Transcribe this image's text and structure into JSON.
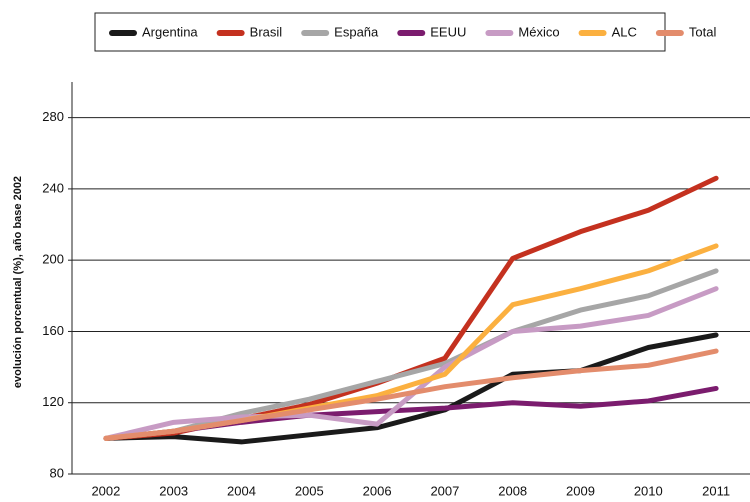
{
  "chart_data": {
    "type": "line",
    "y_label": "evolución porcentual (%), año base 2002",
    "categories": [
      "2002",
      "2003",
      "2004",
      "2005",
      "2006",
      "2007",
      "2008",
      "2009",
      "2010",
      "2011"
    ],
    "series": [
      {
        "name": "Argentina",
        "color": "#1a1a1a",
        "values": [
          100,
          101,
          98,
          102,
          106,
          116,
          136,
          138,
          151,
          158
        ]
      },
      {
        "name": "Brasil",
        "color": "#c4311f",
        "values": [
          100,
          103,
          111,
          119,
          131,
          145,
          201,
          216,
          228,
          246
        ]
      },
      {
        "name": "España",
        "color": "#a6a6a6",
        "values": [
          100,
          104,
          114,
          122,
          132,
          142,
          160,
          172,
          180,
          194
        ]
      },
      {
        "name": "EEUU",
        "color": "#7b1c6e",
        "values": [
          100,
          104,
          109,
          113,
          115,
          117,
          120,
          118,
          121,
          128
        ]
      },
      {
        "name": "México",
        "color": "#c79bc4",
        "values": [
          100,
          109,
          112,
          113,
          108,
          140,
          160,
          163,
          169,
          184
        ]
      },
      {
        "name": "ALC",
        "color": "#fbb040",
        "values": [
          100,
          104,
          110,
          117,
          124,
          136,
          175,
          184,
          194,
          208
        ]
      },
      {
        "name": "Total",
        "color": "#e38c6c",
        "values": [
          100,
          104,
          110,
          116,
          122,
          129,
          134,
          138,
          141,
          149
        ]
      }
    ],
    "ylim": [
      80,
      300
    ],
    "yticks": [
      80,
      120,
      160,
      200,
      240,
      280
    ],
    "grid": true,
    "legend": "top"
  }
}
